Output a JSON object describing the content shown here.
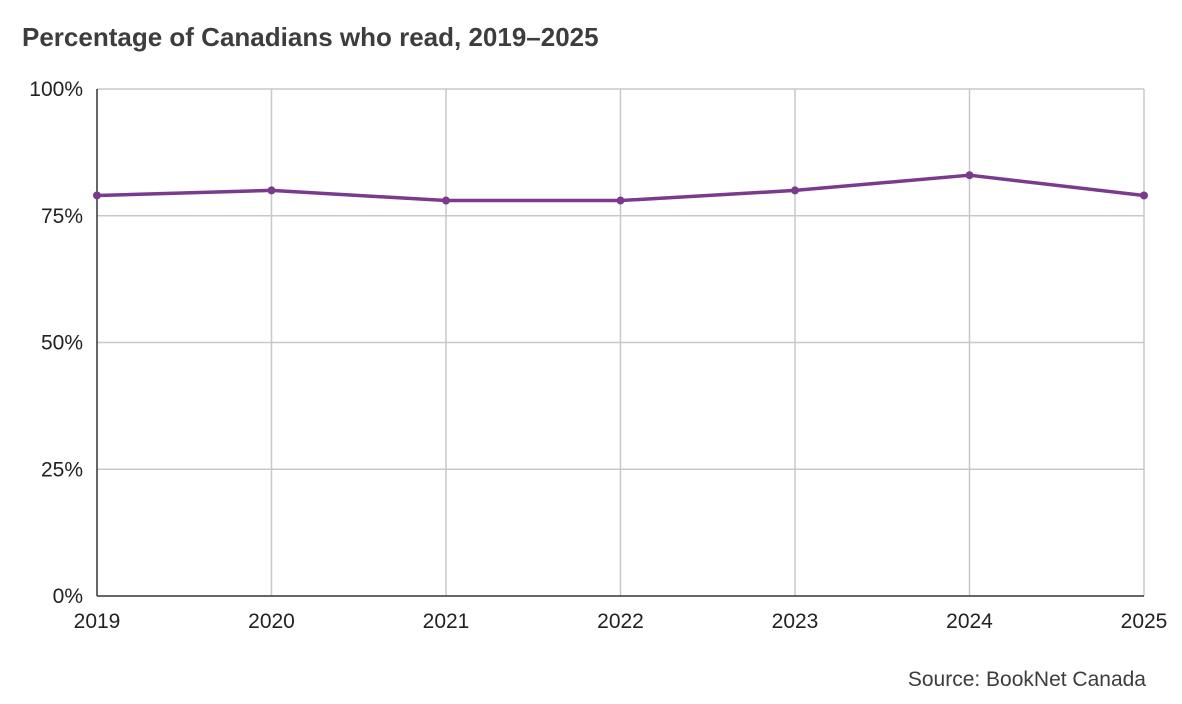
{
  "chart_data": {
    "type": "line",
    "title": "Percentage of Canadians who read, 2019–2025",
    "xlabel": "",
    "ylabel": "",
    "categories": [
      "2019",
      "2020",
      "2021",
      "2022",
      "2023",
      "2024",
      "2025"
    ],
    "series": [
      {
        "values": [
          79,
          80,
          78,
          78,
          80,
          83,
          79
        ],
        "color": "#7b3a8e"
      }
    ],
    "ylim": [
      0,
      100
    ],
    "yticks": [
      0,
      25,
      50,
      75,
      100
    ],
    "ytick_labels": [
      "0%",
      "25%",
      "50%",
      "75%",
      "100%"
    ],
    "grid": true,
    "legend": "none",
    "source": "Source: BookNet Canada"
  }
}
